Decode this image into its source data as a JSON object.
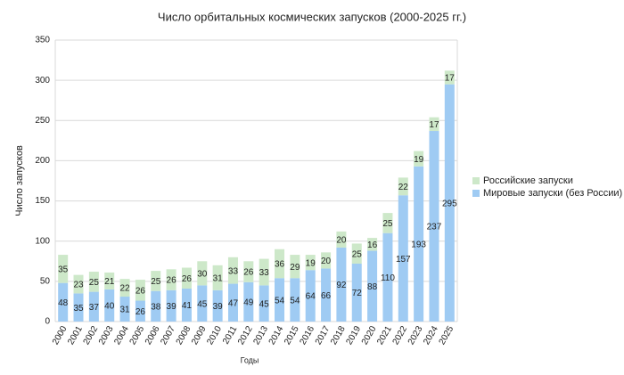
{
  "chart_data": {
    "type": "stacked-bar",
    "title": "Число орбитальных космических запусков (2000-2025 гг.)",
    "x_label": "Годы",
    "y_label": "Число запусков",
    "categories": [
      "2000",
      "2001",
      "2002",
      "2003",
      "2004",
      "2005",
      "2006",
      "2007",
      "2008",
      "2009",
      "2010",
      "2011",
      "2012",
      "2013",
      "2014",
      "2015",
      "2016",
      "2017",
      "2018",
      "2019",
      "2020",
      "2021",
      "2022",
      "2023",
      "2024",
      "2025"
    ],
    "series": [
      {
        "name": "Мировые запуски (без России)",
        "color": "#9fcbf3",
        "values": [
          48,
          35,
          37,
          40,
          31,
          26,
          38,
          39,
          41,
          45,
          39,
          47,
          49,
          45,
          54,
          54,
          64,
          66,
          92,
          72,
          88,
          110,
          157,
          193,
          237,
          295
        ]
      },
      {
        "name": "Российские запуски",
        "color": "#cde8c9",
        "values": [
          35,
          23,
          25,
          21,
          22,
          26,
          25,
          26,
          26,
          30,
          31,
          33,
          26,
          33,
          36,
          29,
          19,
          20,
          20,
          25,
          16,
          25,
          22,
          19,
          17,
          17
        ]
      }
    ],
    "ylim": [
      0,
      350
    ],
    "yticks": [
      0,
      50,
      100,
      150,
      200,
      250,
      300,
      350
    ],
    "grid": true,
    "legend": "right"
  }
}
